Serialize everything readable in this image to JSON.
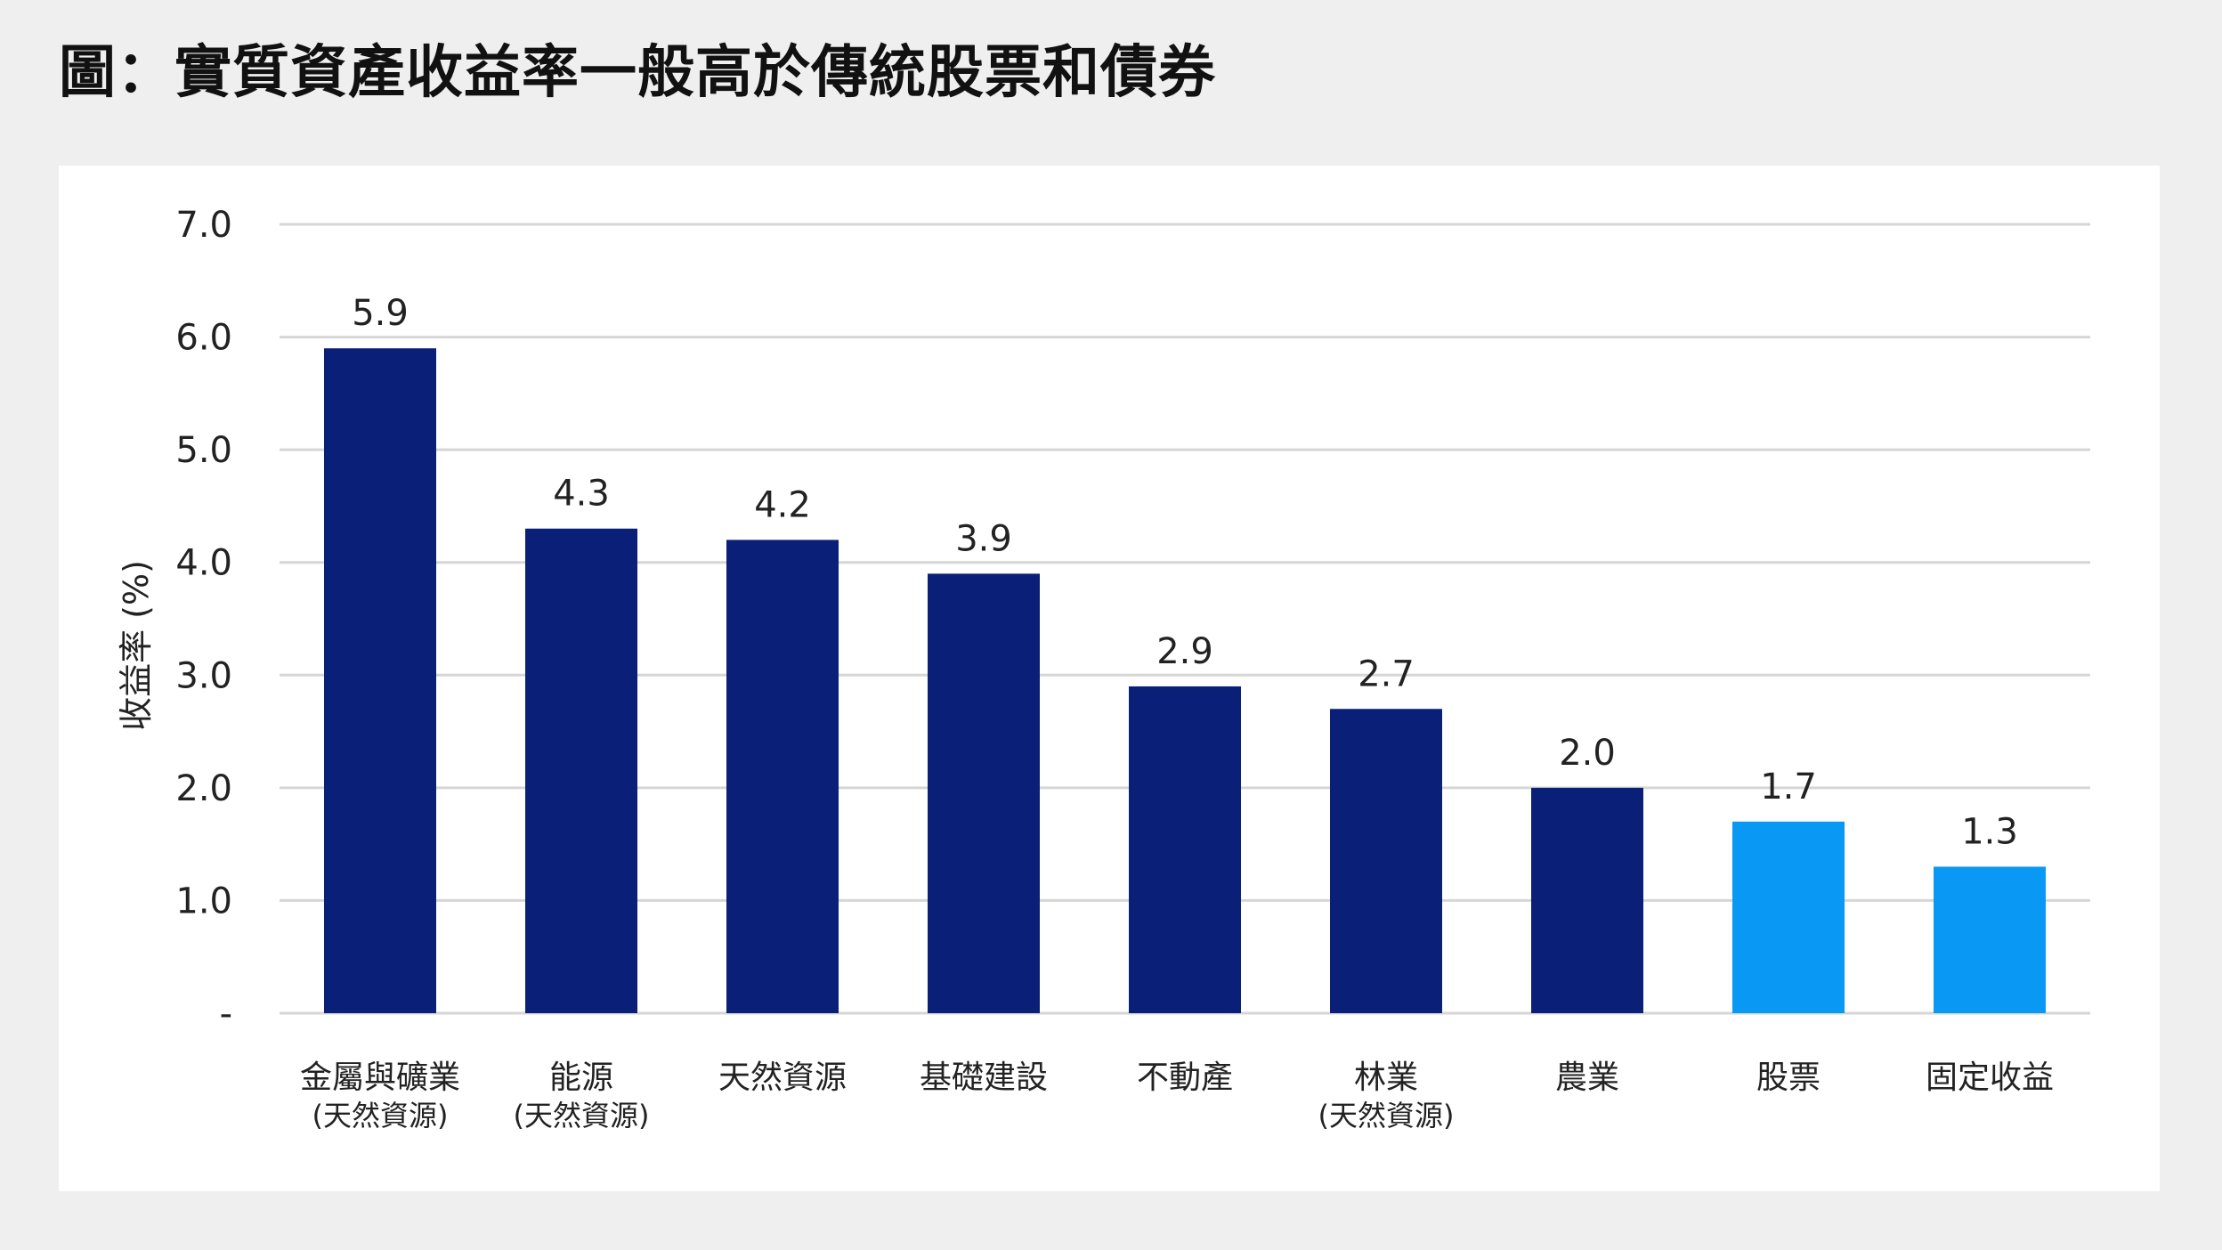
{
  "title": "圖：實質資產收益率一般高於傳統股票和債券",
  "colors": {
    "dark": "#0a1f77",
    "light": "#0a98f5",
    "grid": "#d6d6d6"
  },
  "chart_data": {
    "type": "bar",
    "ylabel": "收益率 (%)",
    "ylim": [
      0,
      7
    ],
    "yticks": [
      "-",
      "1.0",
      "2.0",
      "3.0",
      "4.0",
      "5.0",
      "6.0",
      "7.0"
    ],
    "grid": true,
    "categories": [
      {
        "label": "金屬與礦業",
        "sub": "(天然資源)",
        "value": 5.9,
        "value_label": "5.9",
        "color": "dark"
      },
      {
        "label": "能源",
        "sub": "(天然資源)",
        "value": 4.3,
        "value_label": "4.3",
        "color": "dark"
      },
      {
        "label": "天然資源",
        "sub": "",
        "value": 4.2,
        "value_label": "4.2",
        "color": "dark"
      },
      {
        "label": "基礎建設",
        "sub": "",
        "value": 3.9,
        "value_label": "3.9",
        "color": "dark"
      },
      {
        "label": "不動產",
        "sub": "",
        "value": 2.9,
        "value_label": "2.9",
        "color": "dark"
      },
      {
        "label": "林業",
        "sub": "(天然資源)",
        "value": 2.7,
        "value_label": "2.7",
        "color": "dark"
      },
      {
        "label": "農業",
        "sub": "",
        "value": 2.0,
        "value_label": "2.0",
        "color": "dark"
      },
      {
        "label": "股票",
        "sub": "",
        "value": 1.7,
        "value_label": "1.7",
        "color": "light"
      },
      {
        "label": "固定收益",
        "sub": "",
        "value": 1.3,
        "value_label": "1.3",
        "color": "light"
      }
    ]
  }
}
